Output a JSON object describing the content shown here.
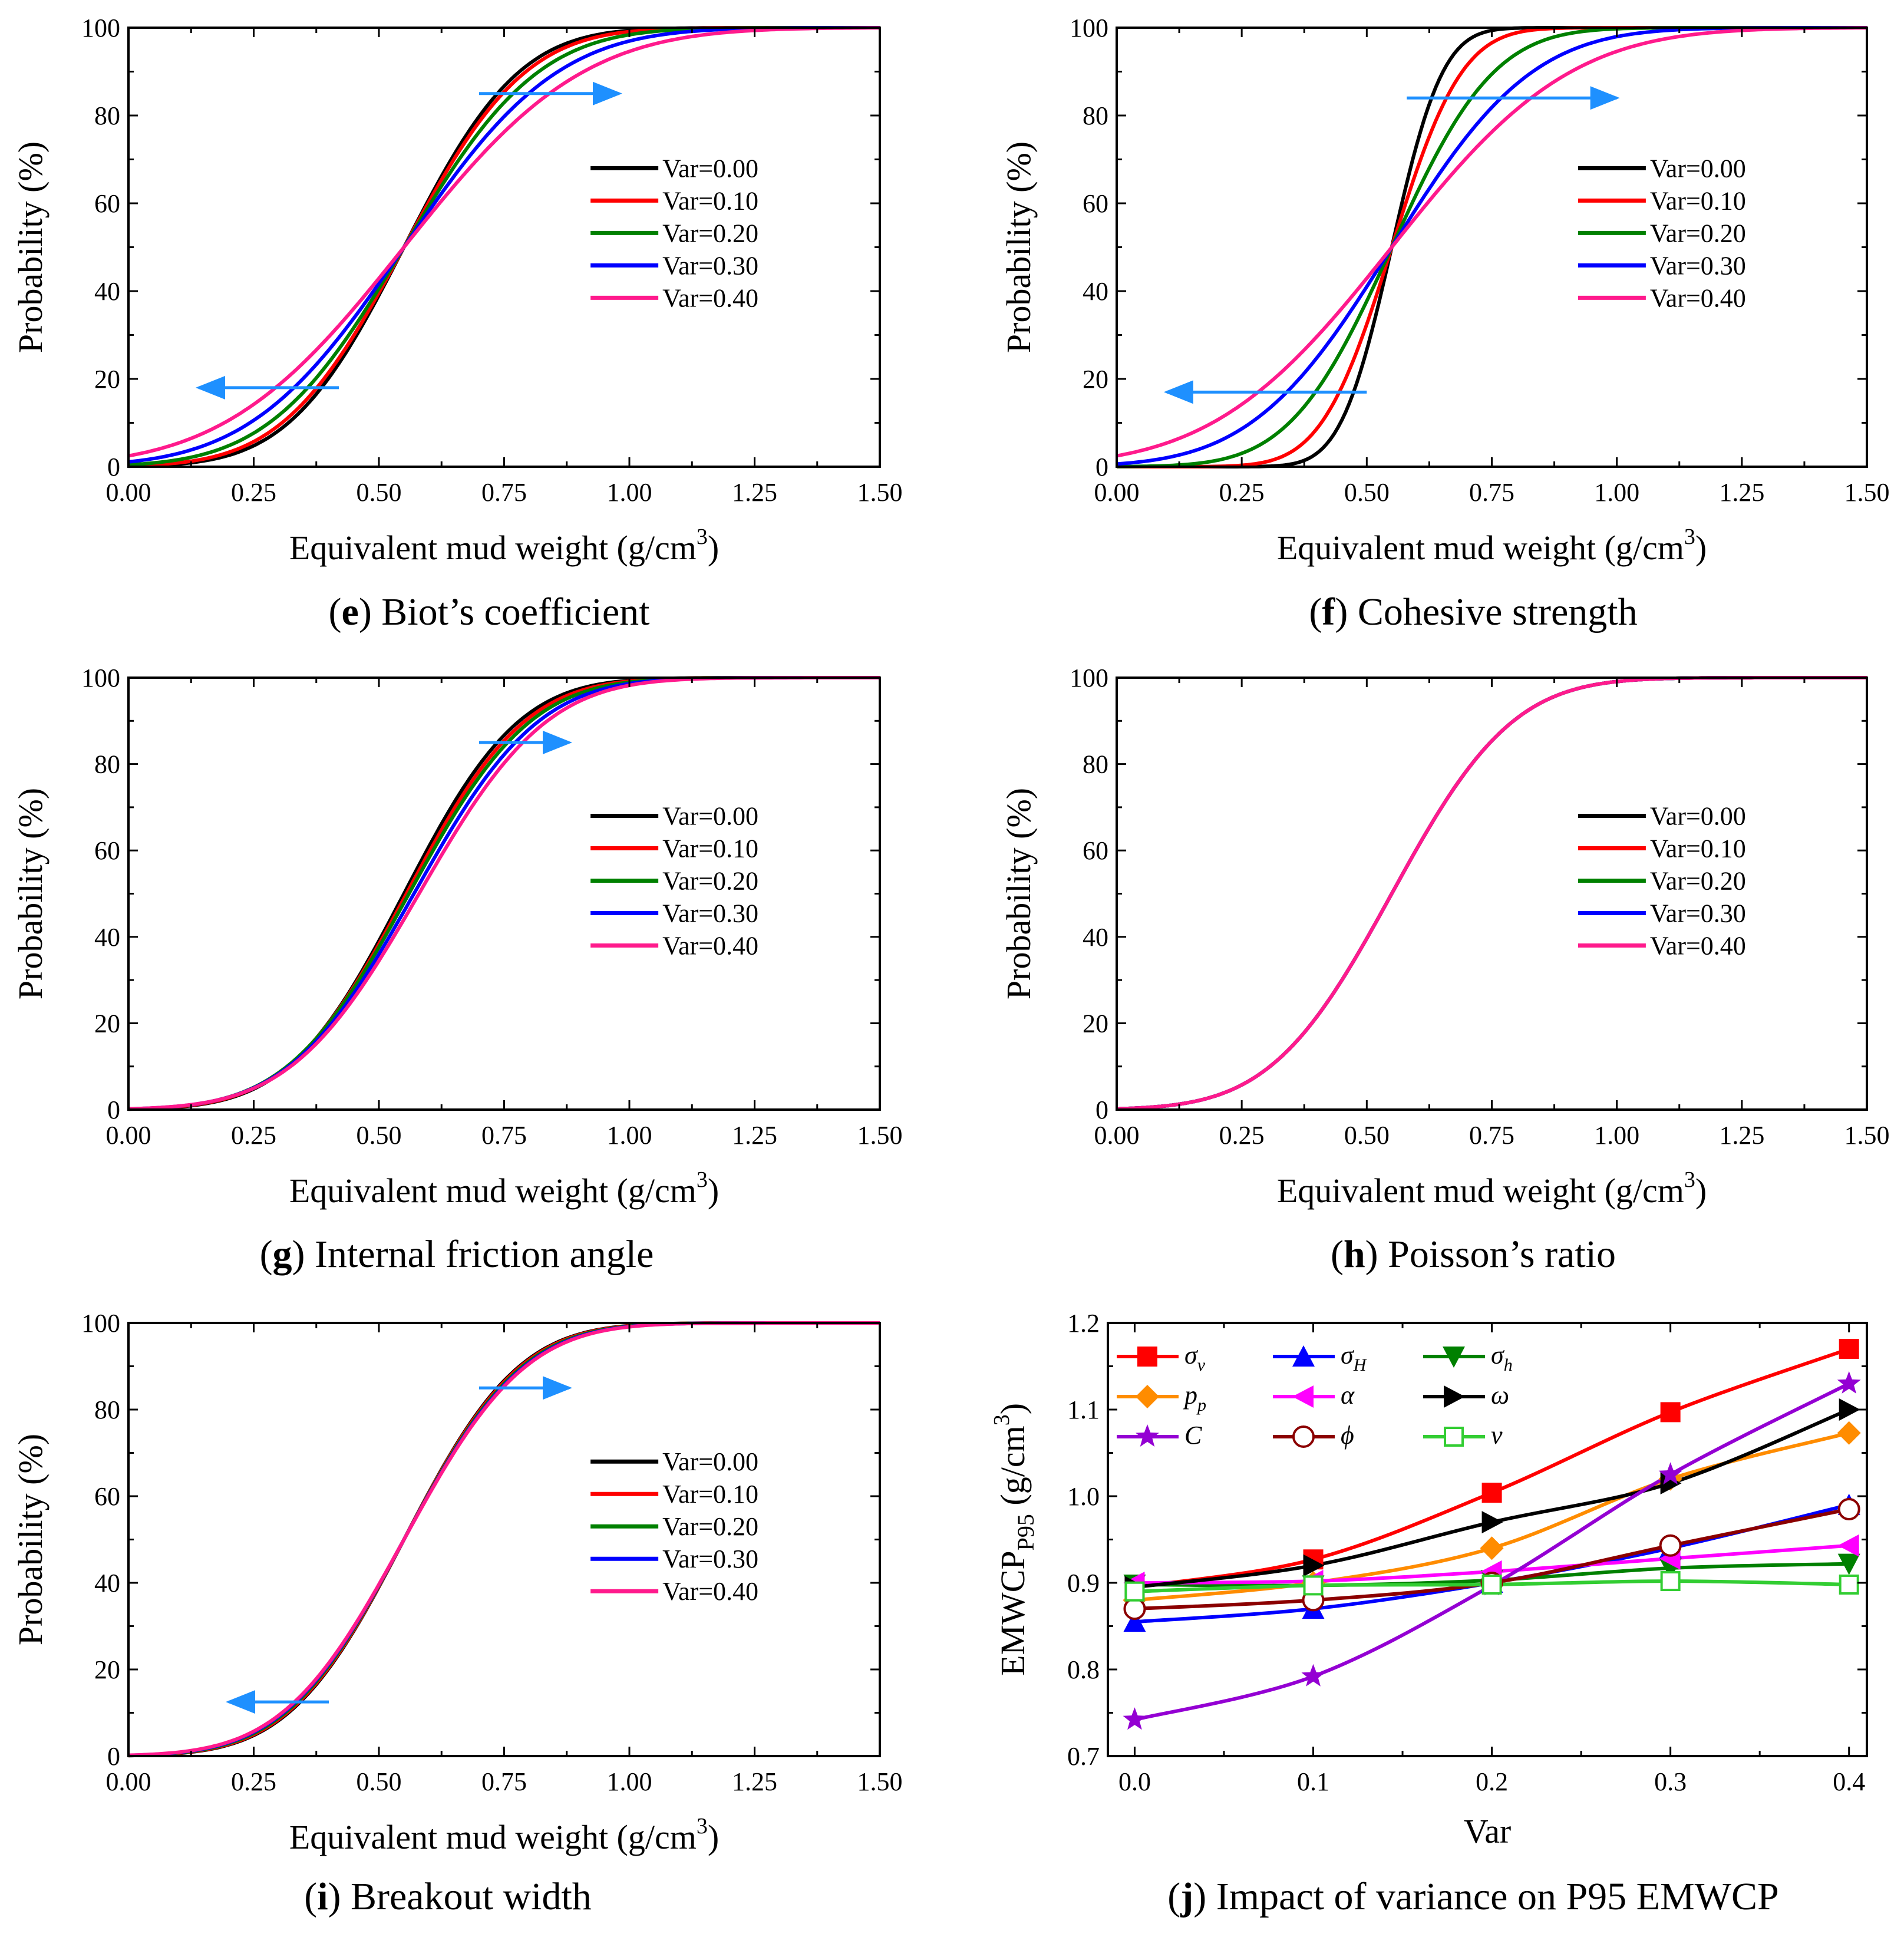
{
  "figure": {
    "panel_order": [
      "e",
      "f",
      "g",
      "h",
      "i",
      "j"
    ]
  },
  "style": {
    "series_colors": [
      "#000000",
      "#ff0000",
      "#008000",
      "#0000ff",
      "#ff1a8c"
    ],
    "arrow_color": "#1e90ff"
  },
  "chart_data": [
    {
      "id": "e",
      "type": "line",
      "caption_letter": "e",
      "caption_text": " Biot’s coefficient",
      "xlabel": "Equivalent mud weight (g/cm",
      "xlabel_sup": "3",
      "xlabel_end": ")",
      "ylabel": "Probability (%)",
      "xlim": [
        0,
        1.5
      ],
      "ylim": [
        0,
        100
      ],
      "xticks": [
        "0.00",
        "0.25",
        "0.50",
        "0.75",
        "1.00",
        "1.25",
        "1.50"
      ],
      "yticks": [
        "0",
        "20",
        "40",
        "60",
        "80",
        "100"
      ],
      "legend_position": "right-middle",
      "cdf_center": 0.55,
      "cdf_sigmas": [
        0.18,
        0.19,
        0.21,
        0.24,
        0.28
      ],
      "arrows": [
        {
          "x1": 0.7,
          "x2": 0.98,
          "y": 85
        },
        {
          "x1": 0.42,
          "x2": 0.14,
          "y": 18
        }
      ],
      "series": [
        {
          "name": "Var=0.00"
        },
        {
          "name": "Var=0.10"
        },
        {
          "name": "Var=0.20"
        },
        {
          "name": "Var=0.30"
        },
        {
          "name": "Var=0.40"
        }
      ]
    },
    {
      "id": "f",
      "type": "line",
      "caption_letter": "f",
      "caption_text": " Cohesive strength",
      "xlabel": "Equivalent mud weight (g/cm",
      "xlabel_sup": "3",
      "xlabel_end": ")",
      "ylabel": "Probability (%)",
      "xlim": [
        0,
        1.5
      ],
      "ylim": [
        0,
        100
      ],
      "xticks": [
        "0.00",
        "0.25",
        "0.50",
        "0.75",
        "1.00",
        "1.25",
        "1.50"
      ],
      "yticks": [
        "0",
        "20",
        "40",
        "60",
        "80",
        "100"
      ],
      "legend_position": "right-middle",
      "cdf_center": 0.55,
      "cdf_sigmas": [
        0.08,
        0.11,
        0.16,
        0.22,
        0.28
      ],
      "arrows": [
        {
          "x1": 0.58,
          "x2": 1.0,
          "y": 84
        },
        {
          "x1": 0.5,
          "x2": 0.1,
          "y": 17
        }
      ],
      "series": [
        {
          "name": "Var=0.00"
        },
        {
          "name": "Var=0.10"
        },
        {
          "name": "Var=0.20"
        },
        {
          "name": "Var=0.30"
        },
        {
          "name": "Var=0.40"
        }
      ]
    },
    {
      "id": "g",
      "type": "line",
      "caption_letter": "g",
      "caption_text": " Internal friction angle",
      "xlabel": "Equivalent mud weight (g/cm",
      "xlabel_sup": "3",
      "xlabel_end": ")",
      "ylabel": "Probability (%)",
      "xlim": [
        0,
        1.5
      ],
      "ylim": [
        0,
        100
      ],
      "xticks": [
        "0.00",
        "0.25",
        "0.50",
        "0.75",
        "1.00",
        "1.25",
        "1.50"
      ],
      "yticks": [
        "0",
        "20",
        "40",
        "60",
        "80",
        "100"
      ],
      "legend_position": "right-middle",
      "cdf_centers": [
        0.55,
        0.555,
        0.56,
        0.57,
        0.58
      ],
      "cdf_sigmas": [
        0.18,
        0.185,
        0.19,
        0.195,
        0.2
      ],
      "arrows": [
        {
          "x1": 0.7,
          "x2": 0.88,
          "y": 85
        }
      ],
      "series": [
        {
          "name": "Var=0.00"
        },
        {
          "name": "Var=0.10"
        },
        {
          "name": "Var=0.20"
        },
        {
          "name": "Var=0.30"
        },
        {
          "name": "Var=0.40"
        }
      ]
    },
    {
      "id": "h",
      "type": "line",
      "caption_letter": "h",
      "caption_text": " Poisson’s ratio",
      "xlabel": "Equivalent mud weight (g/cm",
      "xlabel_sup": "3",
      "xlabel_end": ")",
      "ylabel": "Probability (%)",
      "xlim": [
        0,
        1.5
      ],
      "ylim": [
        0,
        100
      ],
      "xticks": [
        "0.00",
        "0.25",
        "0.50",
        "0.75",
        "1.00",
        "1.25",
        "1.50"
      ],
      "yticks": [
        "0",
        "20",
        "40",
        "60",
        "80",
        "100"
      ],
      "legend_position": "right-middle",
      "cdf_center": 0.55,
      "cdf_sigmas": [
        0.19,
        0.19,
        0.19,
        0.19,
        0.19
      ],
      "arrows": [],
      "series": [
        {
          "name": "Var=0.00"
        },
        {
          "name": "Var=0.10"
        },
        {
          "name": "Var=0.20"
        },
        {
          "name": "Var=0.30"
        },
        {
          "name": "Var=0.40"
        }
      ]
    },
    {
      "id": "i",
      "type": "line",
      "caption_letter": "i",
      "caption_text": " Breakout width",
      "xlabel": "Equivalent mud weight (g/cm",
      "xlabel_sup": "3",
      "xlabel_end": ")",
      "ylabel": "Probability (%)",
      "xlim": [
        0,
        1.5
      ],
      "ylim": [
        0,
        100
      ],
      "xticks": [
        "0.00",
        "0.25",
        "0.50",
        "0.75",
        "1.00",
        "1.25",
        "1.50"
      ],
      "yticks": [
        "0",
        "20",
        "40",
        "60",
        "80",
        "100"
      ],
      "legend_position": "right-middle",
      "cdf_center": 0.55,
      "cdf_sigmas": [
        0.18,
        0.182,
        0.185,
        0.188,
        0.19
      ],
      "arrows": [
        {
          "x1": 0.7,
          "x2": 0.88,
          "y": 85
        },
        {
          "x1": 0.4,
          "x2": 0.2,
          "y": 12.5
        }
      ],
      "series": [
        {
          "name": "Var=0.00"
        },
        {
          "name": "Var=0.10"
        },
        {
          "name": "Var=0.20"
        },
        {
          "name": "Var=0.30"
        },
        {
          "name": "Var=0.40"
        }
      ]
    },
    {
      "id": "j",
      "type": "line",
      "caption_letter": "j",
      "caption_text": " Impact of variance on P95 EMWCP",
      "xlabel": "Var",
      "ylabel": "EMWCP",
      "ylabel_sub": "P95",
      "ylabel_unit": " (g/cm",
      "ylabel_sup": "3",
      "ylabel_end": ")",
      "xlim": [
        -0.015,
        0.41
      ],
      "ylim": [
        0.7,
        1.2
      ],
      "xticks": [
        "0.0",
        "0.1",
        "0.2",
        "0.3",
        "0.4"
      ],
      "yticks": [
        "0.7",
        "0.8",
        "0.9",
        "1.0",
        "1.1",
        "1.2"
      ],
      "legend_position": "top-left",
      "x": [
        0.0,
        0.1,
        0.2,
        0.3,
        0.4
      ],
      "series": [
        {
          "name": "σ",
          "sub": "v",
          "color": "#ff0000",
          "marker": "square",
          "values": [
            0.895,
            0.927,
            1.004,
            1.097,
            1.17
          ]
        },
        {
          "name": "σ",
          "sub": "H",
          "color": "#0000ff",
          "marker": "triangle-up",
          "values": [
            0.855,
            0.87,
            0.9,
            0.94,
            0.99
          ]
        },
        {
          "name": "σ",
          "sub": "h",
          "color": "#008000",
          "marker": "triangle-down",
          "values": [
            0.898,
            0.897,
            0.903,
            0.917,
            0.922
          ]
        },
        {
          "name": "p",
          "sub": "p",
          "color": "#ff8c00",
          "marker": "diamond",
          "values": [
            0.88,
            0.9,
            0.94,
            1.02,
            1.073
          ]
        },
        {
          "name": "α",
          "sub": "",
          "color": "#ff00ff",
          "marker": "triangle-left",
          "values": [
            0.9,
            0.902,
            0.913,
            0.928,
            0.943
          ]
        },
        {
          "name": "ω",
          "sub": "",
          "color": "#000000",
          "marker": "triangle-right",
          "values": [
            0.895,
            0.92,
            0.97,
            1.015,
            1.1
          ]
        },
        {
          "name": "C",
          "sub": "",
          "color": "#9400d3",
          "marker": "star",
          "values": [
            0.742,
            0.792,
            0.897,
            1.025,
            1.13
          ]
        },
        {
          "name": "ϕ",
          "sub": "",
          "color": "#8b0000",
          "marker": "circle-open",
          "values": [
            0.87,
            0.88,
            0.9,
            0.943,
            0.985
          ]
        },
        {
          "name": "ν",
          "sub": "",
          "color": "#32cd32",
          "marker": "square-open",
          "values": [
            0.89,
            0.897,
            0.898,
            0.902,
            0.898
          ]
        }
      ]
    }
  ]
}
